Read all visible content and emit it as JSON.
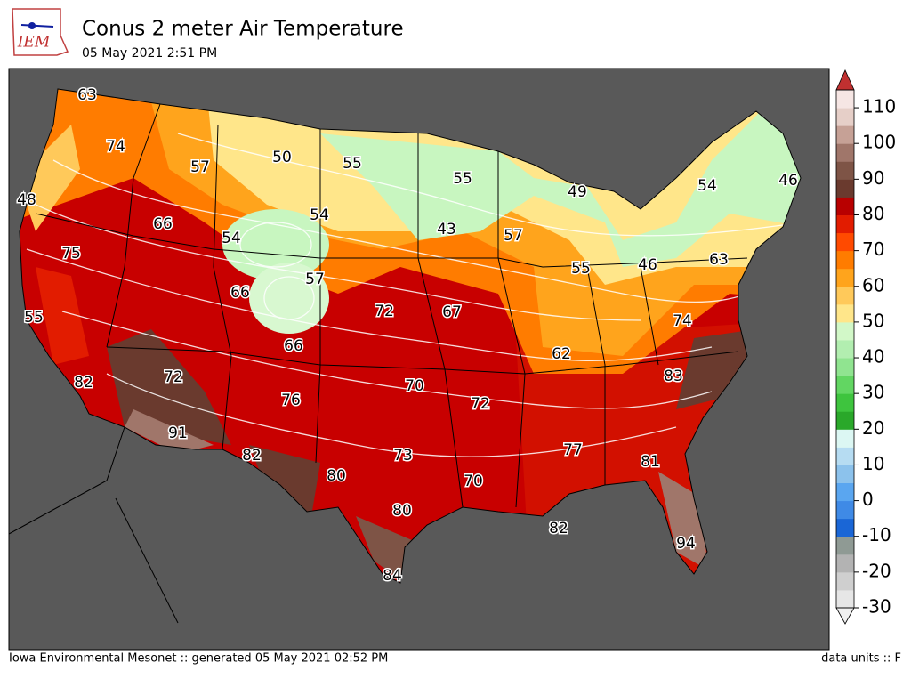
{
  "header": {
    "logo_text": "IEM",
    "title": "Conus 2 meter Air Temperature",
    "subtitle": "05 May 2021 2:51 PM"
  },
  "footer": {
    "left": "Iowa Environmental Mesonet :: generated 05 May 2021 02:52 PM",
    "right": "data units :: F"
  },
  "colorbar": {
    "lim": [
      -30,
      115
    ],
    "ticks": [
      -30,
      -20,
      -10,
      0,
      10,
      20,
      30,
      40,
      50,
      60,
      70,
      80,
      90,
      100,
      110
    ],
    "under_color": "#f0f0f0",
    "over_color": "#c03030",
    "colors": [
      "#e6e6e6",
      "#cfcfcf",
      "#b3b3b3",
      "#8f9a94",
      "#1a66d6",
      "#3f8ae6",
      "#5aa6f0",
      "#8cc2ec",
      "#b6dcf2",
      "#dcf7f3",
      "#2aa82a",
      "#3ec43e",
      "#62d662",
      "#90e490",
      "#b2eeb0",
      "#d2f8c8",
      "#ffe68a",
      "#ffc95a",
      "#ffa41c",
      "#ff7c00",
      "#ff4a00",
      "#e21c00",
      "#b80000",
      "#6a3a2e",
      "#7e5446",
      "#a0766a",
      "#c6a196",
      "#e6cfc8",
      "#f6e6e4"
    ]
  },
  "stations": [
    63,
    74,
    57,
    50,
    55,
    55,
    49,
    54,
    46,
    48,
    66,
    54,
    54,
    43,
    57,
    75,
    57,
    55,
    46,
    63,
    66,
    72,
    67,
    55,
    74,
    66,
    62,
    82,
    72,
    76,
    70,
    72,
    83,
    91,
    82,
    73,
    77,
    81,
    80,
    70,
    80,
    82,
    94,
    84
  ]
}
